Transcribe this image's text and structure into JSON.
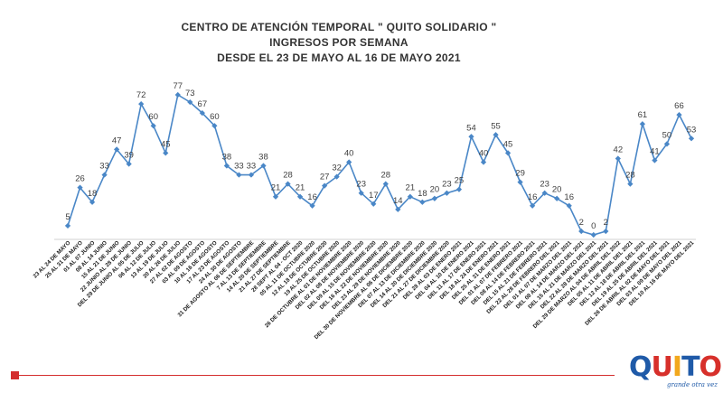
{
  "chart_data": {
    "type": "line",
    "title": [
      "CENTRO DE ATENCIÓN TEMPORAL \" QUITO SOLIDARIO \"",
      "INGRESOS POR SEMANA",
      "DESDE EL 23 DE MAYO AL 16 DE MAYO 2021"
    ],
    "xlabel": "",
    "ylabel": "",
    "grid": false,
    "legend": "none",
    "color": "#4a87c7",
    "ylim": [
      0,
      77
    ],
    "categories": [
      "23 AL 24 DE MAYO",
      "25 AL 31 DE MAYO",
      "01 AL 07 JUNIO",
      "08 AL 14 JUNIO",
      "15 AL 21 DE JUNIO",
      "22 JUNIO AL 28 DE JUNIO",
      "DEL 29 DE JUNIO AL 05 DE JULIO",
      "06 AL 12 DE JULIO",
      "13 AL 19 DE JULIO",
      "20 AL 26 DE JULIO",
      "27 AL 02 DE AGOSTO",
      "03 AL 09 DE AGOSTO",
      "10 AL 16 DE AGOSTO",
      "17 AL 23 DE AGOSTO",
      "24 AL 30 DE AGOSTO",
      "31 DE AGOSTO AL 06 DE SEPTIEMBRE",
      "7 AL 13 DE SEPTIEMBRE",
      "14 AL 20 DE SEPTIEMBRE",
      "21 AL 27 DE SEPTIEMBRE",
      "28 SEPT AL 04 - OCT 2020",
      "05 AL 11 DE OCTUBRE 2020",
      "12 AL 18 DE OCTUBRE 2020",
      "19 AL 25 DE OCTUBRE 2020",
      "26 DE OCTUBRE AL 01 DE NOVIEMBRE 2020",
      "DEL 02 AL 08 DE NOVIEMBRE 2020",
      "DEL 09 AL 15 DE NOVIEMBRE 2020",
      "DEL 16 AL 22 DE NOVIEMBRE 2020",
      "DEL 23 AL 29 DE NOVIEMBRE 2020",
      "DEL 30 DE NOVIEMBRE AL 06 DE DICIEMBRE 2020",
      "DEL 07 AL 13 DE DICIEMBRE 2020",
      "DEL 14 AL 20 DE DICIEMBRE 2020",
      "DEL 21 AL 27 DE DICIEMBRE 2020",
      "DEL 28 AL 03 DE ENERO 2021",
      "DEL 04 AL 10 DE ENERO 2021",
      "DEL 11 AL 17 DE ENERO 2021",
      "DEL 18 AL 24 DE ENERO 2021",
      "DEL 25 AL 31 DE ENERO 2021",
      "DEL 01 AL 07 DE FEBRERO 2021",
      "DEL 08 AL 14 DE FEBRERO 2021",
      "DEL 15 AL 21 DE FEBRERO 2021",
      "DEL 22 AL 28 DE FEBRERO DEL 2021",
      "DEL 01 AL 07 DE MARZO DEL 2021",
      "DEL 08 AL 14 DE MARZO DEL 2021",
      "DEL 15 AL 21 DE MARZO DEL 2021",
      "DEL 22 AL 28 DE MARZO DEL 2021",
      "DEL 29 DE MARZO AL 04 DE ABRIL DEL 2022",
      "DEL 05 AL 11 DE ABRIL DEL 2021",
      "DEL 12 AL 18 DE ABRIL DEL 2021",
      "DEL 19 AL 25 DE ABRIL DEL 2021",
      "DEL 26 DE ABRIL AL 02 DE MAYO DEL 2021",
      "DEL 03 AL 09 DE MAYO DEL 2021",
      "DEL 10 AL 16 DE MAYO DEL 2021"
    ],
    "values": [
      5,
      26,
      18,
      33,
      47,
      39,
      72,
      60,
      45,
      77,
      73,
      67,
      60,
      38,
      33,
      33,
      38,
      21,
      28,
      21,
      16,
      27,
      32,
      40,
      23,
      17,
      28,
      14,
      21,
      18,
      20,
      23,
      25,
      54,
      40,
      55,
      45,
      29,
      16,
      23,
      20,
      16,
      2,
      0,
      2,
      42,
      28,
      61,
      41,
      50,
      66,
      53
    ]
  },
  "logo": {
    "letters": [
      "Q",
      "U",
      "I",
      "T",
      "O"
    ],
    "tagline": "grande otra vez"
  },
  "colors": {
    "accent_red": "#d42e2e",
    "series": "#4a87c7"
  }
}
